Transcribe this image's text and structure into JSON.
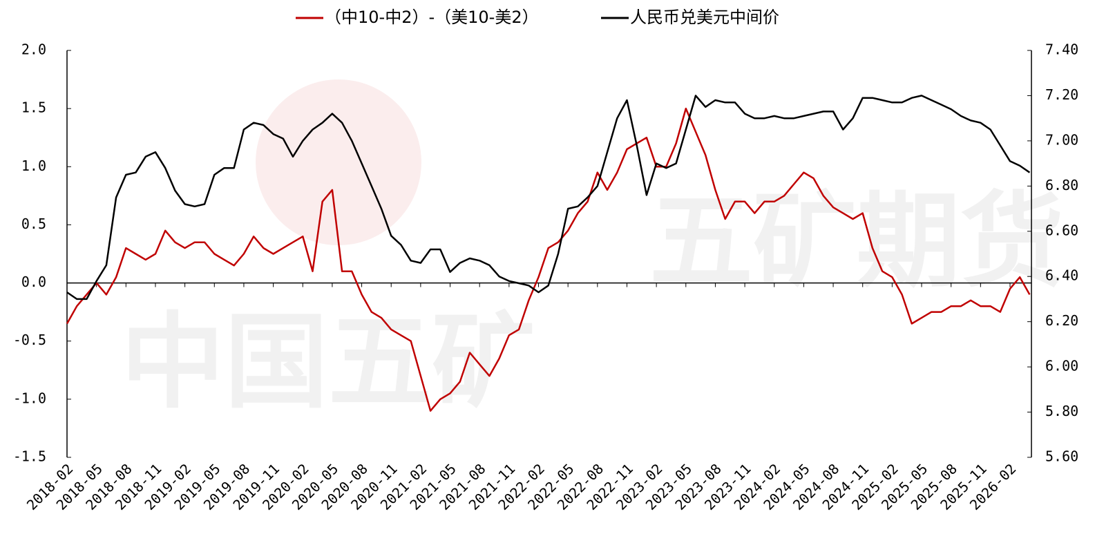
{
  "chart_data": {
    "type": "line",
    "x": [
      "2018-02",
      "2018-03",
      "2018-04",
      "2018-05",
      "2018-06",
      "2018-07",
      "2018-08",
      "2018-09",
      "2018-10",
      "2018-11",
      "2018-12",
      "2019-01",
      "2019-02",
      "2019-03",
      "2019-04",
      "2019-05",
      "2019-06",
      "2019-07",
      "2019-08",
      "2019-09",
      "2019-10",
      "2019-11",
      "2019-12",
      "2020-01",
      "2020-02",
      "2020-03",
      "2020-04",
      "2020-05",
      "2020-06",
      "2020-07",
      "2020-08",
      "2020-09",
      "2020-10",
      "2020-11",
      "2020-12",
      "2021-01",
      "2021-02",
      "2021-03",
      "2021-04",
      "2021-05",
      "2021-06",
      "2021-07",
      "2021-08",
      "2021-09",
      "2021-10",
      "2021-11",
      "2021-12",
      "2022-01",
      "2022-02",
      "2022-03",
      "2022-04",
      "2022-05",
      "2022-06",
      "2022-07",
      "2022-08",
      "2022-09",
      "2022-10",
      "2022-11",
      "2022-12",
      "2023-01",
      "2023-02",
      "2023-03",
      "2023-04",
      "2023-05",
      "2023-06",
      "2023-07",
      "2023-08",
      "2023-09",
      "2023-10",
      "2023-11",
      "2023-12",
      "2024-01",
      "2024-02",
      "2024-03",
      "2024-04",
      "2024-05",
      "2024-06",
      "2024-07",
      "2024-08",
      "2024-09",
      "2024-10",
      "2024-11",
      "2024-12",
      "2025-01",
      "2025-02",
      "2025-03",
      "2025-04",
      "2025-05",
      "2025-06",
      "2025-07",
      "2025-08",
      "2025-09",
      "2025-10",
      "2025-11",
      "2025-12",
      "2026-01",
      "2026-02",
      "2026-03",
      "2026-04"
    ],
    "xticks": [
      "2018-02",
      "2018-05",
      "2018-08",
      "2018-11",
      "2019-02",
      "2019-05",
      "2019-08",
      "2019-11",
      "2020-02",
      "2020-05",
      "2020-08",
      "2020-11",
      "2021-02",
      "2021-05",
      "2021-08",
      "2021-11",
      "2022-02",
      "2022-05",
      "2022-08",
      "2022-11",
      "2023-02",
      "2023-05",
      "2023-08",
      "2023-11",
      "2024-02",
      "2024-05",
      "2024-08",
      "2024-11",
      "2025-02",
      "2025-05",
      "2025-08",
      "2025-11",
      "2026-02"
    ],
    "series": [
      {
        "name": "（中10-中2）-（美10-美2）",
        "color": "#c00000",
        "axis": "y",
        "values": [
          -0.35,
          -0.2,
          -0.1,
          0.0,
          -0.1,
          0.05,
          0.3,
          0.25,
          0.2,
          0.25,
          0.45,
          0.35,
          0.3,
          0.35,
          0.35,
          0.25,
          0.2,
          0.15,
          0.25,
          0.4,
          0.3,
          0.25,
          0.3,
          0.35,
          0.4,
          0.1,
          0.7,
          0.8,
          0.1,
          0.1,
          -0.1,
          -0.25,
          -0.3,
          -0.4,
          -0.45,
          -0.5,
          -0.8,
          -1.1,
          -1.0,
          -0.95,
          -0.85,
          -0.6,
          -0.7,
          -0.8,
          -0.65,
          -0.45,
          -0.4,
          -0.15,
          0.05,
          0.3,
          0.35,
          0.45,
          0.6,
          0.7,
          0.95,
          0.8,
          0.95,
          1.15,
          1.2,
          1.25,
          1.0,
          1.0,
          1.2,
          1.5,
          1.3,
          1.1,
          0.8,
          0.55,
          0.7,
          0.7,
          0.6,
          0.7,
          0.7,
          0.75,
          0.85,
          0.95,
          0.9,
          0.75,
          0.65,
          0.6,
          0.55,
          0.6,
          0.3,
          0.1,
          0.05,
          -0.1,
          -0.35,
          -0.3,
          -0.25,
          -0.25,
          -0.2,
          -0.2,
          -0.15,
          -0.2,
          -0.2,
          -0.25,
          -0.05,
          0.05,
          -0.1
        ]
      },
      {
        "name": "人民币兑美元中间价",
        "color": "#000000",
        "axis": "y2",
        "values": [
          6.33,
          6.3,
          6.3,
          6.38,
          6.45,
          6.75,
          6.85,
          6.86,
          6.93,
          6.95,
          6.88,
          6.78,
          6.72,
          6.71,
          6.72,
          6.85,
          6.88,
          6.88,
          7.05,
          7.08,
          7.07,
          7.03,
          7.01,
          6.93,
          7.0,
          7.05,
          7.08,
          7.12,
          7.08,
          7.0,
          6.9,
          6.8,
          6.7,
          6.58,
          6.54,
          6.47,
          6.46,
          6.52,
          6.52,
          6.42,
          6.46,
          6.48,
          6.47,
          6.45,
          6.4,
          6.38,
          6.37,
          6.36,
          6.33,
          6.36,
          6.5,
          6.7,
          6.71,
          6.75,
          6.8,
          6.95,
          7.1,
          7.18,
          6.98,
          6.76,
          6.9,
          6.88,
          6.9,
          7.05,
          7.2,
          7.15,
          7.18,
          7.17,
          7.17,
          7.12,
          7.1,
          7.1,
          7.11,
          7.1,
          7.1,
          7.11,
          7.12,
          7.13,
          7.13,
          7.05,
          7.1,
          7.19,
          7.19,
          7.18,
          7.17,
          7.17,
          7.19,
          7.2,
          7.18,
          7.16,
          7.14,
          7.11,
          7.09,
          7.08,
          7.05,
          6.98,
          6.91,
          6.89,
          6.86
        ]
      }
    ],
    "ylim": [
      -1.5,
      2.0
    ],
    "yticks": [
      {
        "value": -1.5,
        "label": "-1.5"
      },
      {
        "value": -1.0,
        "label": "-1.0"
      },
      {
        "value": -0.5,
        "label": "-0.5"
      },
      {
        "value": 0,
        "label": "0.0"
      },
      {
        "value": 0.5,
        "label": "0.5"
      },
      {
        "value": 1.0,
        "label": "1.0"
      },
      {
        "value": 1.5,
        "label": "1.5"
      },
      {
        "value": 2.0,
        "label": "2.0"
      }
    ],
    "y2lim": [
      5.6,
      7.4
    ],
    "y2ticks": [
      {
        "value": 5.6,
        "label": "5.60"
      },
      {
        "value": 5.8,
        "label": "5.80"
      },
      {
        "value": 6.0,
        "label": "6.00"
      },
      {
        "value": 6.2,
        "label": "6.20"
      },
      {
        "value": 6.4,
        "label": "6.40"
      },
      {
        "value": 6.6,
        "label": "6.60"
      },
      {
        "value": 6.8,
        "label": "6.80"
      },
      {
        "value": 7.0,
        "label": "7.00"
      },
      {
        "value": 7.2,
        "label": "7.20"
      },
      {
        "value": 7.4,
        "label": "7.40"
      }
    ],
    "legend": "top",
    "watermarks": [
      "中国五矿",
      "五矿期货"
    ]
  }
}
